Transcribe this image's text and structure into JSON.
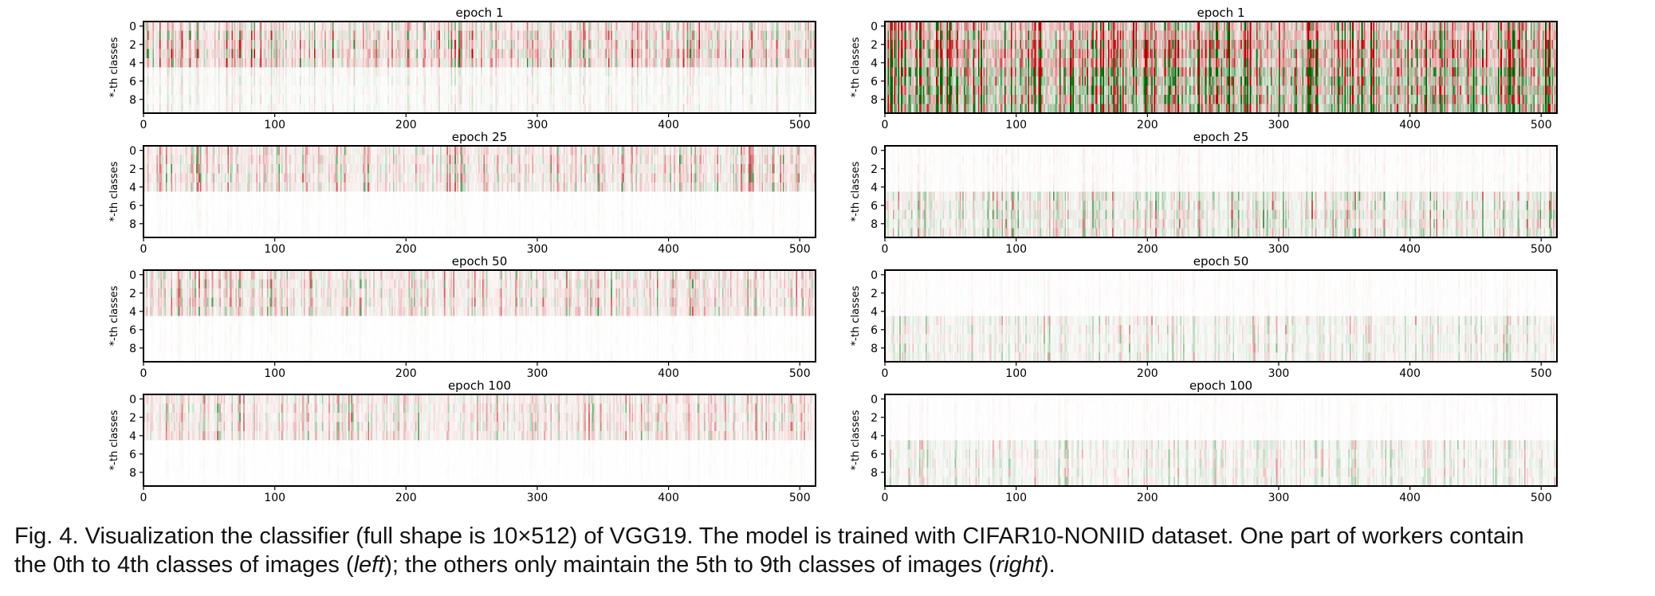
{
  "chart_data": [
    {
      "type": "heatmap",
      "column": "left",
      "title": "epoch 1",
      "ylabel": "*-th classes",
      "xlim": [
        0,
        512
      ],
      "ylim": [
        0,
        10
      ],
      "x_ticks": [
        0,
        100,
        200,
        300,
        400,
        500
      ],
      "y_ticks": [
        0,
        2,
        4,
        6,
        8
      ],
      "row_intensity": [
        0.22,
        0.26,
        0.28,
        0.3,
        0.27,
        0.07,
        0.07,
        0.06,
        0.06,
        0.06
      ],
      "rows_red_bias": [
        0,
        1,
        2,
        3,
        4
      ]
    },
    {
      "type": "heatmap",
      "column": "left",
      "title": "epoch 25",
      "ylabel": "*-th classes",
      "xlim": [
        0,
        512
      ],
      "ylim": [
        0,
        10
      ],
      "x_ticks": [
        0,
        100,
        200,
        300,
        400,
        500
      ],
      "y_ticks": [
        0,
        2,
        4,
        6,
        8
      ],
      "row_intensity": [
        0.2,
        0.21,
        0.22,
        0.22,
        0.21,
        0.015,
        0.015,
        0.015,
        0.015,
        0.015
      ],
      "rows_red_bias": [
        0,
        1,
        2,
        3,
        4
      ]
    },
    {
      "type": "heatmap",
      "column": "left",
      "title": "epoch 50",
      "ylabel": "*-th classes",
      "xlim": [
        0,
        512
      ],
      "ylim": [
        0,
        10
      ],
      "x_ticks": [
        0,
        100,
        200,
        300,
        400,
        500
      ],
      "y_ticks": [
        0,
        2,
        4,
        6,
        8
      ],
      "row_intensity": [
        0.19,
        0.2,
        0.2,
        0.21,
        0.2,
        0.015,
        0.015,
        0.015,
        0.015,
        0.015
      ],
      "rows_red_bias": [
        0,
        1,
        2,
        3,
        4
      ]
    },
    {
      "type": "heatmap",
      "column": "left",
      "title": "epoch 100",
      "ylabel": "*-th classes",
      "xlim": [
        0,
        512
      ],
      "ylim": [
        0,
        10
      ],
      "x_ticks": [
        0,
        100,
        200,
        300,
        400,
        500
      ],
      "y_ticks": [
        0,
        2,
        4,
        6,
        8
      ],
      "row_intensity": [
        0.17,
        0.18,
        0.18,
        0.19,
        0.18,
        0.012,
        0.012,
        0.012,
        0.012,
        0.012
      ],
      "rows_red_bias": [
        0,
        1,
        2,
        3,
        4
      ]
    },
    {
      "type": "heatmap",
      "column": "right",
      "title": "epoch 1",
      "ylabel": "*-th classes",
      "xlim": [
        0,
        512
      ],
      "ylim": [
        0,
        10
      ],
      "x_ticks": [
        0,
        100,
        200,
        300,
        400,
        500
      ],
      "y_ticks": [
        0,
        2,
        4,
        6,
        8
      ],
      "row_intensity": [
        0.55,
        0.55,
        0.7,
        0.72,
        0.65,
        0.75,
        0.72,
        0.72,
        0.7,
        0.7
      ],
      "rows_red_bias": [
        0,
        1,
        2,
        3,
        4
      ]
    },
    {
      "type": "heatmap",
      "column": "right",
      "title": "epoch 25",
      "ylabel": "*-th classes",
      "xlim": [
        0,
        512
      ],
      "ylim": [
        0,
        10
      ],
      "x_ticks": [
        0,
        100,
        200,
        300,
        400,
        500
      ],
      "y_ticks": [
        0,
        2,
        4,
        6,
        8
      ],
      "row_intensity": [
        0.03,
        0.03,
        0.03,
        0.03,
        0.03,
        0.2,
        0.2,
        0.22,
        0.2,
        0.2
      ],
      "rows_red_bias": [
        0,
        1,
        2,
        3,
        4
      ]
    },
    {
      "type": "heatmap",
      "column": "right",
      "title": "epoch 50",
      "ylabel": "*-th classes",
      "xlim": [
        0,
        512
      ],
      "ylim": [
        0,
        10
      ],
      "x_ticks": [
        0,
        100,
        200,
        300,
        400,
        500
      ],
      "y_ticks": [
        0,
        2,
        4,
        6,
        8
      ],
      "row_intensity": [
        0.02,
        0.02,
        0.02,
        0.02,
        0.02,
        0.13,
        0.13,
        0.13,
        0.13,
        0.13
      ],
      "rows_red_bias": [
        0,
        1,
        2,
        3,
        4
      ]
    },
    {
      "type": "heatmap",
      "column": "right",
      "title": "epoch 100",
      "ylabel": "*-th classes",
      "xlim": [
        0,
        512
      ],
      "ylim": [
        0,
        10
      ],
      "x_ticks": [
        0,
        100,
        200,
        300,
        400,
        500
      ],
      "y_ticks": [
        0,
        2,
        4,
        6,
        8
      ],
      "row_intensity": [
        0.015,
        0.015,
        0.015,
        0.015,
        0.015,
        0.12,
        0.12,
        0.12,
        0.12,
        0.12
      ],
      "rows_red_bias": [
        0,
        1,
        2,
        3,
        4
      ]
    }
  ],
  "colors": {
    "positive": "#b40000",
    "negative": "#006400",
    "neutral": "#ffffff",
    "frame": "#000000"
  },
  "caption": {
    "line1": "Fig. 4. Visualization the classifier (full shape is 10×512) of VGG19. The model is trained with CIFAR10-NONIID dataset. One part of workers contain",
    "line2_a": "the 0th to 4th classes of images (",
    "line2_left": "left",
    "line2_b": "); the others only maintain the 5th to 9th classes of images (",
    "line2_right": "right",
    "line2_c": ")."
  }
}
